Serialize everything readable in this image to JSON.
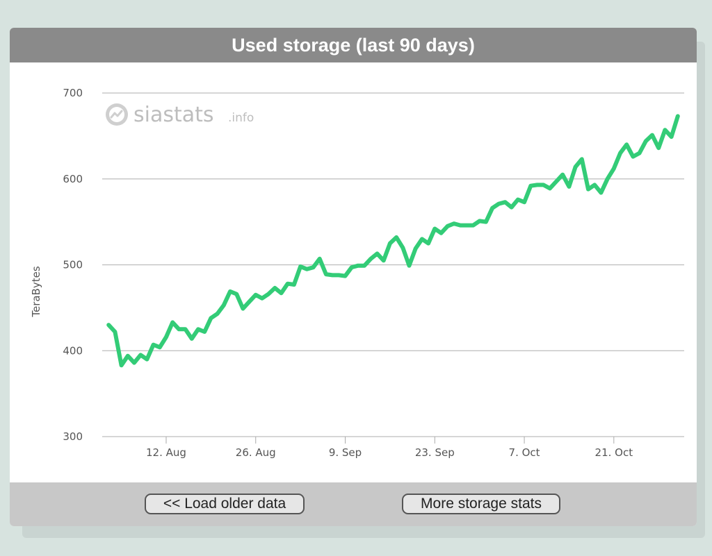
{
  "chart_title": "Used storage (last 90 days)",
  "buttons": {
    "load_older": "<< Load older data",
    "more_stats": "More storage stats"
  },
  "watermark": {
    "brand": "siastats",
    "suffix": ".info",
    "icon": "trend-circle-icon"
  },
  "colors": {
    "series": "#33cc77",
    "header_bg": "#8a8a8a",
    "gridline": "#bdbdbd"
  },
  "chart_data": {
    "type": "line",
    "title": "Used storage (last 90 days)",
    "ylabel": "TeraBytes",
    "xlabel": "",
    "ylim": [
      300,
      700
    ],
    "yticks": [
      300,
      400,
      500,
      600,
      700
    ],
    "xticks": [
      {
        "date": "2018-08-12",
        "label": "12. Aug"
      },
      {
        "date": "2018-08-26",
        "label": "26. Aug"
      },
      {
        "date": "2018-09-09",
        "label": "9. Sep"
      },
      {
        "date": "2018-09-23",
        "label": "23. Sep"
      },
      {
        "date": "2018-10-07",
        "label": "7. Oct"
      },
      {
        "date": "2018-10-21",
        "label": "21. Oct"
      }
    ],
    "xlim": [
      "2018-08-02",
      "2018-11-01"
    ],
    "grid": true,
    "series": [
      {
        "start_date": "2018-08-03",
        "values": [
          430,
          422,
          383,
          394,
          386,
          395,
          390,
          407,
          404,
          416,
          433,
          425,
          425,
          414,
          425,
          422,
          438,
          443,
          453,
          469,
          466,
          449,
          457,
          465,
          461,
          466,
          473,
          467,
          478,
          477,
          498,
          495,
          497,
          507,
          489,
          488,
          488,
          487,
          497,
          499,
          499,
          507,
          513,
          505,
          525,
          532,
          520,
          499,
          519,
          530,
          525,
          542,
          537,
          545,
          548,
          546,
          546,
          546,
          551,
          550,
          566,
          571,
          573,
          567,
          576,
          573,
          592,
          593,
          593,
          589,
          597,
          605,
          591,
          614,
          623,
          588,
          593,
          584,
          600,
          612,
          630,
          640,
          626,
          630,
          644,
          651,
          636,
          657,
          649,
          673
        ]
      }
    ]
  }
}
